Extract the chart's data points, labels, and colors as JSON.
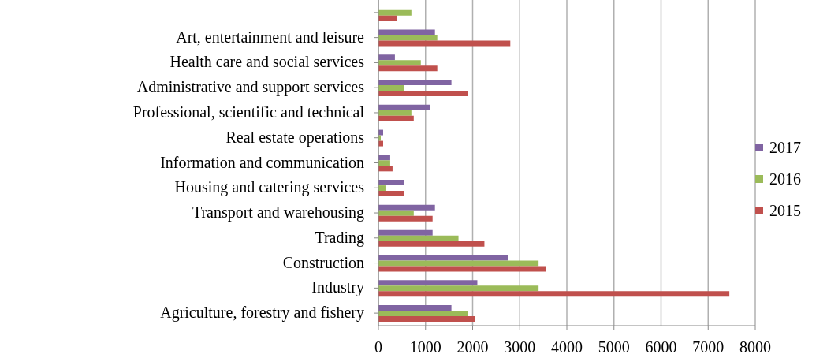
{
  "chart_data": {
    "type": "bar",
    "orientation": "horizontal",
    "categories": [
      null,
      "Art, entertainment and leisure",
      "Health care and social services",
      "Administrative and support services",
      "Professional, scientific and technical",
      "Real estate operations",
      "Information and communication",
      "Housing and catering services",
      "Transport and warehousing",
      "Trading",
      "Construction",
      "Industry",
      "Agriculture, forestry and fishery"
    ],
    "series": [
      {
        "name": "2017",
        "color": "#8064a2",
        "values": [
          null,
          1200,
          350,
          1550,
          1100,
          100,
          250,
          550,
          1200,
          1150,
          2750,
          2100,
          1550
        ]
      },
      {
        "name": "2016",
        "color": "#9bbb59",
        "values": [
          700,
          1250,
          900,
          550,
          700,
          50,
          250,
          150,
          750,
          1700,
          3400,
          3400,
          1900
        ]
      },
      {
        "name": "2015",
        "color": "#c0504d",
        "values": [
          400,
          2800,
          1250,
          1900,
          750,
          100,
          300,
          550,
          1150,
          2250,
          3550,
          7450,
          2050
        ]
      }
    ],
    "xlim": [
      0,
      8000
    ],
    "xticks": [
      0,
      1000,
      2000,
      3000,
      4000,
      5000,
      6000,
      7000,
      8000
    ],
    "grid": "x",
    "legend": "right"
  }
}
